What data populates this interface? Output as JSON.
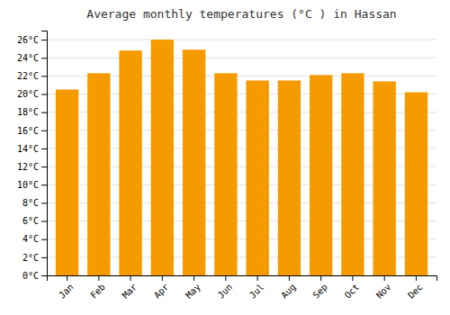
{
  "chart_data": {
    "type": "bar",
    "title": "Average monthly temperatures (°C ) in Hassan",
    "categories": [
      "Jan",
      "Feb",
      "Mar",
      "Apr",
      "May",
      "Jun",
      "Jul",
      "Aug",
      "Sep",
      "Oct",
      "Nov",
      "Dec"
    ],
    "values": [
      20.5,
      22.3,
      24.8,
      26.0,
      24.9,
      22.3,
      21.5,
      21.5,
      22.1,
      22.3,
      21.4,
      20.2
    ],
    "color": "#F59B00",
    "ylim": [
      0,
      27
    ],
    "yticks": [
      {
        "value": 0,
        "label": "0°C"
      },
      {
        "value": 2,
        "label": "2°C"
      },
      {
        "value": 4,
        "label": "4°C"
      },
      {
        "value": 6,
        "label": "6°C"
      },
      {
        "value": 8,
        "label": "8°C"
      },
      {
        "value": 10,
        "label": "10°C"
      },
      {
        "value": 12,
        "label": "12°C"
      },
      {
        "value": 14,
        "label": "14°C"
      },
      {
        "value": 16,
        "label": "16°C"
      },
      {
        "value": 18,
        "label": "18°C"
      },
      {
        "value": 20,
        "label": "20°C"
      },
      {
        "value": 22,
        "label": "22°C"
      },
      {
        "value": 24,
        "label": "24°C"
      },
      {
        "value": 26,
        "label": "26°C"
      }
    ],
    "grid": true
  }
}
